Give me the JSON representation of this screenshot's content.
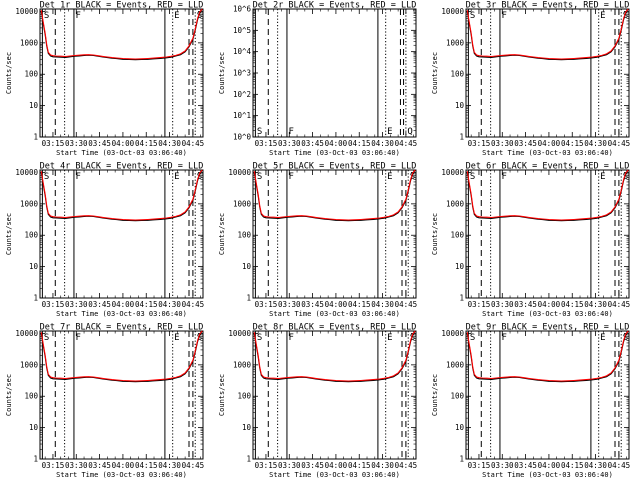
{
  "figure": {
    "panels": [
      {
        "title": "Det 1r BLACK = Events, RED = LLD",
        "ylabel": "Counts/sec",
        "xlabel": "Start Time (03-Oct-03 03:06:40)"
      },
      {
        "title": "Det 2r BLACK = Events, RED = LLD",
        "ylabel": "Counts/sec",
        "xlabel": "Start Time (03-Oct-03 03:06:40)"
      },
      {
        "title": "Det 3r BLACK = Events, RED = LLD",
        "ylabel": "Counts/sec",
        "xlabel": "Start Time (03-Oct-03 03:06:40)"
      },
      {
        "title": "Det 4r BLACK = Events, RED = LLD",
        "ylabel": "Counts/sec",
        "xlabel": "Start Time (03-Oct-03 03:06:40)"
      },
      {
        "title": "Det 5r BLACK = Events, RED = LLD",
        "ylabel": "Counts/sec",
        "xlabel": "Start Time (03-Oct-03 03:06:40)"
      },
      {
        "title": "Det 6r BLACK = Events, RED = LLD",
        "ylabel": "Counts/sec",
        "xlabel": "Start Time (03-Oct-03 03:06:40)"
      },
      {
        "title": "Det 7r BLACK = Events, RED = LLD",
        "ylabel": "Counts/sec",
        "xlabel": "Start Time (03-Oct-03 03:06:40)"
      },
      {
        "title": "Det 8r BLACK = Events, RED = LLD",
        "ylabel": "Counts/sec",
        "xlabel": "Start Time (03-Oct-03 03:06:40)"
      },
      {
        "title": "Det 9r BLACK = Events, RED = LLD",
        "ylabel": "Counts/sec",
        "xlabel": "Start Time (03-Oct-03 03:06:40)"
      }
    ]
  },
  "chart_data": {
    "type": "line",
    "x_ticks": [
      "03:15",
      "03:30",
      "03:45",
      "04:00",
      "04:15",
      "04:30",
      "04:45"
    ],
    "x_tick_minutes": [
      15,
      30,
      45,
      60,
      75,
      90,
      105
    ],
    "xlim_minutes": [
      6.67,
      111.5
    ],
    "x_unit_note": "minutes after 03:00 on 03-Oct-03",
    "y_scale": "log",
    "series_colors": {
      "events": "#000000",
      "lld": "#ff0000"
    },
    "panel_default": {
      "ylim": [
        1,
        12000
      ],
      "y_ticks": [
        1,
        10,
        100,
        1000,
        10000
      ],
      "y_tick_labels": [
        "1",
        "10",
        "100",
        "1000",
        "10000"
      ],
      "x": [
        7.5,
        8.5,
        10,
        11,
        12,
        13.5,
        15,
        17,
        20,
        23,
        26,
        29,
        32,
        35,
        38,
        41,
        44,
        47,
        50,
        53,
        56,
        60,
        64,
        68,
        72,
        76,
        80,
        84,
        88,
        91,
        94,
        97,
        100,
        102.5,
        105,
        106.5,
        108,
        109.5,
        111
      ],
      "events": [
        10000,
        5000,
        1800,
        800,
        460,
        380,
        360,
        355,
        350,
        345,
        360,
        375,
        385,
        395,
        405,
        395,
        375,
        355,
        340,
        325,
        315,
        300,
        295,
        290,
        295,
        300,
        310,
        320,
        335,
        350,
        380,
        420,
        520,
        750,
        1300,
        2500,
        5500,
        9000,
        12000
      ],
      "lld": [
        11000,
        5500,
        2000,
        880,
        500,
        410,
        390,
        380,
        375,
        368,
        380,
        395,
        405,
        415,
        420,
        410,
        390,
        370,
        355,
        340,
        330,
        318,
        310,
        305,
        310,
        318,
        328,
        340,
        355,
        372,
        400,
        445,
        550,
        800,
        1400,
        2700,
        6000,
        9800,
        12000
      ],
      "markers": [
        {
          "t": 8.2,
          "style": "solid",
          "label": "S"
        },
        {
          "t": 16.5,
          "style": "dashed",
          "label": ""
        },
        {
          "t": 22.5,
          "style": "dotted",
          "label": ""
        },
        {
          "t": 28.5,
          "style": "solid",
          "label": "F"
        },
        {
          "t": 87,
          "style": "solid",
          "label": ""
        },
        {
          "t": 92,
          "style": "dotted",
          "label": "E"
        },
        {
          "t": 102.5,
          "style": "dashed",
          "label": ""
        },
        {
          "t": 105,
          "style": "dashed",
          "label": ""
        },
        {
          "t": 106.5,
          "style": "dotted",
          "label": "S"
        }
      ]
    },
    "panels": [
      {
        "name": "Det 1r"
      },
      {
        "name": "Det 2r",
        "empty": true,
        "ylim": [
          1,
          1000000
        ],
        "y_ticks": [
          1,
          10,
          100,
          1000,
          10000,
          100000,
          1000000
        ],
        "y_tick_labels": [
          "10^0",
          "10^1",
          "10^2",
          "10^3",
          "10^4",
          "10^5",
          "10^6"
        ],
        "markers": [
          {
            "t": 8.2,
            "style": "solid",
            "label": "S"
          },
          {
            "t": 16.5,
            "style": "dashed",
            "label": ""
          },
          {
            "t": 22.5,
            "style": "dotted",
            "label": ""
          },
          {
            "t": 28.5,
            "style": "solid",
            "label": "F"
          },
          {
            "t": 87,
            "style": "solid",
            "label": ""
          },
          {
            "t": 92,
            "style": "dotted",
            "label": "E"
          },
          {
            "t": 101.5,
            "style": "dashed",
            "label": ""
          },
          {
            "t": 103.5,
            "style": "dashed",
            "label": ""
          },
          {
            "t": 105,
            "style": "dotted",
            "label": "Q"
          }
        ]
      },
      {
        "name": "Det 3r"
      },
      {
        "name": "Det 4r"
      },
      {
        "name": "Det 5r"
      },
      {
        "name": "Det 6r"
      },
      {
        "name": "Det 7r"
      },
      {
        "name": "Det 8r"
      },
      {
        "name": "Det 9r"
      }
    ]
  }
}
